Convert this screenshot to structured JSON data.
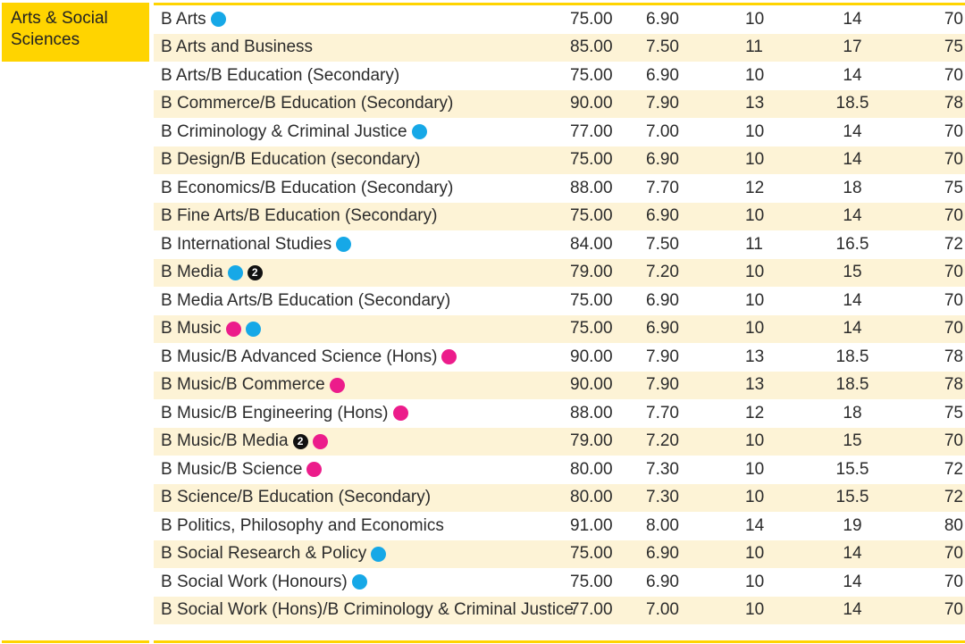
{
  "category": "Arts & Social Sciences",
  "rows": [
    {
      "name": "B Arts",
      "marks": [
        "cyan"
      ],
      "atar": "75.00",
      "ib": "6.90",
      "c4": "10",
      "c5": "14",
      "c6": "70"
    },
    {
      "name": "B Arts and Business",
      "marks": [],
      "atar": "85.00",
      "ib": "7.50",
      "c4": "11",
      "c5": "17",
      "c6": "75"
    },
    {
      "name": "B Arts/B Education (Secondary)",
      "marks": [],
      "atar": "75.00",
      "ib": "6.90",
      "c4": "10",
      "c5": "14",
      "c6": "70"
    },
    {
      "name": "B Commerce/B Education (Secondary)",
      "marks": [],
      "atar": "90.00",
      "ib": "7.90",
      "c4": "13",
      "c5": "18.5",
      "c6": "78"
    },
    {
      "name": "B Criminology & Criminal Justice",
      "marks": [
        "cyan"
      ],
      "atar": "77.00",
      "ib": "7.00",
      "c4": "10",
      "c5": "14",
      "c6": "70"
    },
    {
      "name": "B Design/B Education (secondary)",
      "marks": [],
      "atar": "75.00",
      "ib": "6.90",
      "c4": "10",
      "c5": "14",
      "c6": "70"
    },
    {
      "name": "B Economics/B Education (Secondary)",
      "marks": [],
      "atar": "88.00",
      "ib": "7.70",
      "c4": "12",
      "c5": "18",
      "c6": "75"
    },
    {
      "name": "B Fine Arts/B Education (Secondary)",
      "marks": [],
      "atar": "75.00",
      "ib": "6.90",
      "c4": "10",
      "c5": "14",
      "c6": "70"
    },
    {
      "name": "B International Studies",
      "marks": [
        "cyan"
      ],
      "atar": "84.00",
      "ib": "7.50",
      "c4": "11",
      "c5": "16.5",
      "c6": "72"
    },
    {
      "name": "B Media",
      "marks": [
        "cyan",
        "num2"
      ],
      "atar": "79.00",
      "ib": "7.20",
      "c4": "10",
      "c5": "15",
      "c6": "70"
    },
    {
      "name": "B Media Arts/B Education (Secondary)",
      "marks": [],
      "atar": "75.00",
      "ib": "6.90",
      "c4": "10",
      "c5": "14",
      "c6": "70"
    },
    {
      "name": "B Music",
      "marks": [
        "pink",
        "cyan"
      ],
      "atar": "75.00",
      "ib": "6.90",
      "c4": "10",
      "c5": "14",
      "c6": "70"
    },
    {
      "name": "B Music/B Advanced Science (Hons)",
      "marks": [
        "pink"
      ],
      "atar": "90.00",
      "ib": "7.90",
      "c4": "13",
      "c5": "18.5",
      "c6": "78"
    },
    {
      "name": "B Music/B Commerce",
      "marks": [
        "pink"
      ],
      "atar": "90.00",
      "ib": "7.90",
      "c4": "13",
      "c5": "18.5",
      "c6": "78"
    },
    {
      "name": "B Music/B Engineering (Hons)",
      "marks": [
        "pink"
      ],
      "atar": "88.00",
      "ib": "7.70",
      "c4": "12",
      "c5": "18",
      "c6": "75"
    },
    {
      "name": "B Music/B Media",
      "marks": [
        "num2",
        "pink"
      ],
      "atar": "79.00",
      "ib": "7.20",
      "c4": "10",
      "c5": "15",
      "c6": "70"
    },
    {
      "name": "B Music/B Science",
      "marks": [
        "pink"
      ],
      "atar": "80.00",
      "ib": "7.30",
      "c4": "10",
      "c5": "15.5",
      "c6": "72"
    },
    {
      "name": "B Science/B Education (Secondary)",
      "marks": [],
      "atar": "80.00",
      "ib": "7.30",
      "c4": "10",
      "c5": "15.5",
      "c6": "72"
    },
    {
      "name": "B Politics, Philosophy and Economics",
      "marks": [],
      "atar": "91.00",
      "ib": "8.00",
      "c4": "14",
      "c5": "19",
      "c6": "80"
    },
    {
      "name": "B Social Research & Policy",
      "marks": [
        "cyan"
      ],
      "atar": "75.00",
      "ib": "6.90",
      "c4": "10",
      "c5": "14",
      "c6": "70"
    },
    {
      "name": "B Social Work (Honours)",
      "marks": [
        "cyan"
      ],
      "atar": "75.00",
      "ib": "6.90",
      "c4": "10",
      "c5": "14",
      "c6": "70"
    },
    {
      "name": "B Social Work (Hons)/B Criminology & Criminal Justice",
      "marks": [],
      "atar": "77.00",
      "ib": "7.00",
      "c4": "10",
      "c5": "14",
      "c6": "70"
    }
  ],
  "marker_num2_text": "2"
}
